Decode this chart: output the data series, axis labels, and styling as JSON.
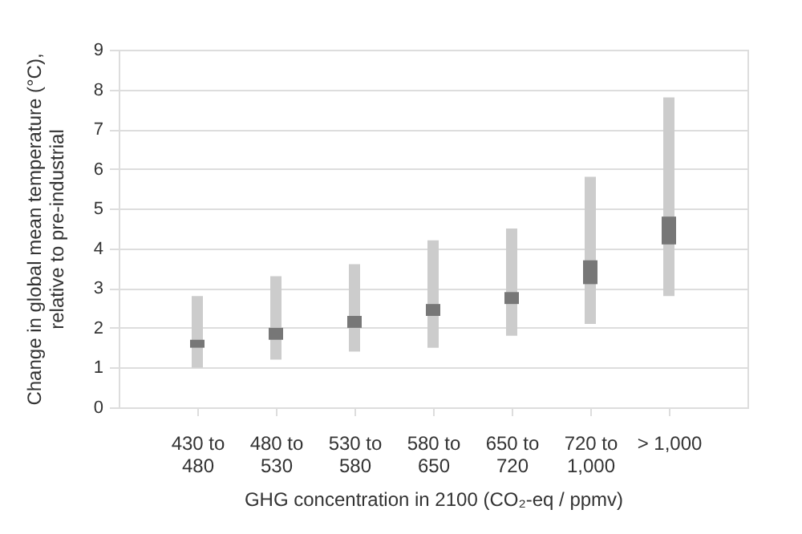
{
  "chart_data": {
    "type": "bar",
    "categories": [
      "430 to\n480",
      "480 to\n530",
      "530 to\n580",
      "580 to\n650",
      "650 to\n720",
      "720 to\n1,000",
      "> 1,000"
    ],
    "xlabel": "GHG concentration in 2100 (CO₂-eq / ppmv)",
    "ylabel": "Change in global mean temperature (°C),\nrelative to pre-industrial",
    "series": [
      {
        "color": "#cccccc",
        "base": [
          1.0,
          1.2,
          1.4,
          1.5,
          1.8,
          2.1,
          2.8
        ],
        "values": [
          1.8,
          2.1,
          2.2,
          2.7,
          2.7,
          3.7,
          5.0
        ]
      },
      {
        "color": "#777777",
        "base": [
          1.5,
          1.7,
          2.0,
          2.3,
          2.6,
          3.1,
          4.1
        ],
        "values": [
          0.2,
          0.3,
          0.3,
          0.3,
          0.3,
          0.6,
          0.7
        ]
      }
    ],
    "ylim": [
      0,
      9
    ],
    "yticks": [
      0,
      1,
      2,
      3,
      4,
      5,
      6,
      7,
      8,
      9
    ],
    "grid": "y",
    "legend": false
  }
}
